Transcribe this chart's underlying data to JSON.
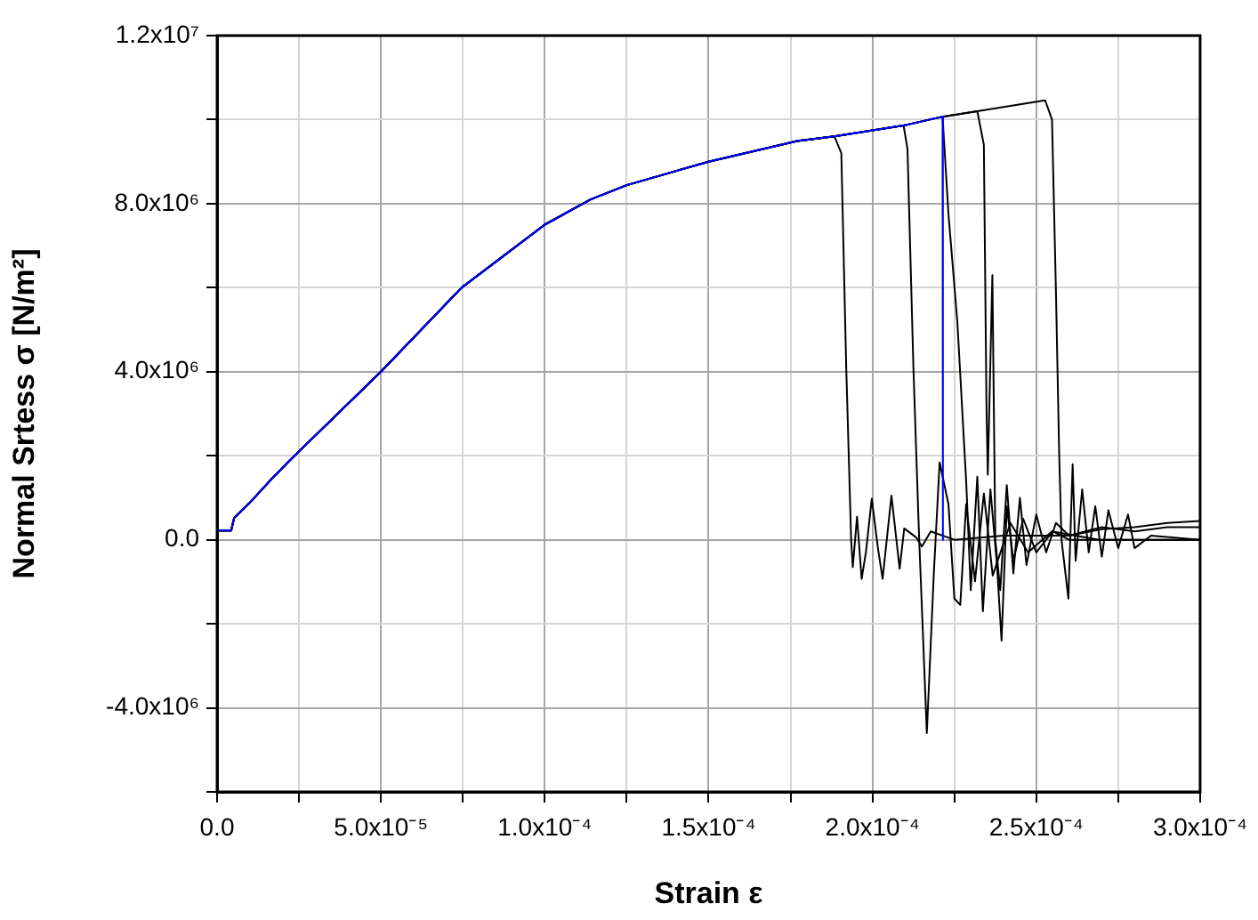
{
  "chart_data": {
    "type": "line",
    "xlabel": "Strain ε",
    "ylabel": "Normal Srtess σ [N/m²]",
    "xlim": [
      0,
      0.0003
    ],
    "ylim": [
      -6000000,
      12000000
    ],
    "xticks": [
      {
        "value": 0,
        "label": "0.0"
      },
      {
        "value": 2.5e-05,
        "label": null
      },
      {
        "value": 5e-05,
        "label": "5.0x10⁻⁵"
      },
      {
        "value": 7.5e-05,
        "label": null
      },
      {
        "value": 0.0001,
        "label": "1.0x10⁻⁴"
      },
      {
        "value": 0.000125,
        "label": null
      },
      {
        "value": 0.00015,
        "label": "1.5x10⁻⁴"
      },
      {
        "value": 0.000175,
        "label": null
      },
      {
        "value": 0.0002,
        "label": "2.0x10⁻⁴"
      },
      {
        "value": 0.000225,
        "label": null
      },
      {
        "value": 0.00025,
        "label": "2.5x10⁻⁴"
      },
      {
        "value": 0.000275,
        "label": null
      },
      {
        "value": 0.0003,
        "label": "3.0x10⁻⁴"
      }
    ],
    "yticks": [
      {
        "value": -6000000,
        "label": null
      },
      {
        "value": -4000000,
        "label": "-4.0x10⁶"
      },
      {
        "value": -2000000,
        "label": null
      },
      {
        "value": 0,
        "label": "0.0"
      },
      {
        "value": 2000000,
        "label": null
      },
      {
        "value": 4000000,
        "label": "4.0x10⁶"
      },
      {
        "value": 6000000,
        "label": null
      },
      {
        "value": 8000000,
        "label": "8.0x10⁶"
      },
      {
        "value": 10000000,
        "label": null
      },
      {
        "value": 12000000,
        "label": "1.2x10⁷"
      }
    ],
    "grid": true,
    "legend": false,
    "marker": "none",
    "line_style": "solid",
    "series": [
      {
        "color": "#000000",
        "x": [
          0,
          4.3e-06,
          5.2e-06,
          9.7e-06,
          1.69e-05,
          2.23e-05,
          5e-05,
          7.46e-05,
          0.0001,
          0.000114,
          0.000125,
          0.00015,
          0.000177,
          0.0001884,
          0.0001905,
          0.000192,
          0.0001935,
          0.000194,
          0.0001953,
          0.0001967,
          0.000198,
          0.0001998,
          0.0002016,
          0.0002031,
          0.0002058,
          0.0002083,
          0.0002097,
          0.0002133,
          0.0002151,
          0.0002178,
          0.000225,
          0.00024,
          0.00026,
          0.00027,
          0.00028,
          0.00029,
          0.0003
        ],
        "values": [
          220000.0,
          220000.0,
          520000.0,
          860000.0,
          1470000.0,
          1900000.0,
          4000000.0,
          6000000.0,
          7500000.0,
          8100000.0,
          8440000.0,
          9000000.0,
          9490000.0,
          9600000.0,
          9200000.0,
          4100000.0,
          0,
          -650000.0,
          550000.0,
          -930000.0,
          -300000.0,
          980000.0,
          -160000.0,
          -930000.0,
          1050000.0,
          -690000.0,
          270000.0,
          60000.0,
          -160000.0,
          200000.0,
          0,
          100000.0,
          100000.0,
          300000.0,
          200000.0,
          300000.0,
          300000.0
        ]
      },
      {
        "color": "#000000",
        "x": [
          0,
          4.3e-06,
          5.2e-06,
          9.7e-06,
          1.69e-05,
          2.23e-05,
          5e-05,
          7.46e-05,
          0.0001,
          0.000114,
          0.000125,
          0.00015,
          0.000177,
          0.0001884,
          0.0002095,
          0.0002107,
          0.0002125,
          0.0002142,
          0.0002166,
          0.0002187,
          0.0002205,
          0.0002232,
          0.000225,
          0.0002268,
          0.0002286,
          0.0002313,
          0.000234,
          0.0002367,
          0.0002421,
          0.0002475,
          0.0002548,
          0.0002692,
          0.0003
        ],
        "values": [
          220000.0,
          220000.0,
          520000.0,
          860000.0,
          1470000.0,
          1900000.0,
          4000000.0,
          6000000.0,
          7500000.0,
          8100000.0,
          8440000.0,
          9000000.0,
          9490000.0,
          9600000.0,
          9860000.0,
          9300000.0,
          4100000.0,
          140000.0,
          -4600000.0,
          -850000.0,
          1840000.0,
          850000.0,
          -1400000.0,
          -1550000.0,
          850000.0,
          -990000.0,
          1100000.0,
          -850000.0,
          400000.0,
          -300000.0,
          200000.0,
          0,
          0
        ]
      },
      {
        "color": "#000000",
        "x": [
          0,
          4.3e-06,
          5.2e-06,
          9.7e-06,
          1.69e-05,
          2.23e-05,
          5e-05,
          7.46e-05,
          0.0001,
          0.000114,
          0.000125,
          0.00015,
          0.000177,
          0.0001884,
          0.0002095,
          0.0002214,
          0.0002232,
          0.0002259,
          0.0002286,
          0.00023,
          0.000232,
          0.0002337,
          0.000236,
          0.000238,
          0.0002394,
          0.000241,
          0.000243,
          0.000246,
          0.00025,
          0.000255,
          0.00026,
          0.0003
        ],
        "values": [
          220000.0,
          220000.0,
          520000.0,
          860000.0,
          1470000.0,
          1900000.0,
          4000000.0,
          6000000.0,
          7500000.0,
          8100000.0,
          8440000.0,
          9000000.0,
          9490000.0,
          9600000.0,
          9860000.0,
          10070000.0,
          7750000.0,
          5200000.0,
          1400000.0,
          -1200000.0,
          1500000.0,
          -1700000.0,
          1200000.0,
          -600000.0,
          -2400000.0,
          800000.0,
          -500000.0,
          500000.0,
          -300000.0,
          200000.0,
          0,
          0
        ]
      },
      {
        "color": "#000000",
        "x": [
          0,
          4.3e-06,
          5.2e-06,
          9.7e-06,
          1.69e-05,
          2.23e-05,
          5e-05,
          7.46e-05,
          0.0001,
          0.000114,
          0.000125,
          0.00015,
          0.000177,
          0.0001884,
          0.0002095,
          0.0002214,
          0.000232,
          0.000234,
          0.0002348,
          0.0002352,
          0.0002366,
          0.0002375,
          0.000239,
          0.000241,
          0.000243,
          0.000245,
          0.000247,
          0.00025,
          0.000253,
          0.000256,
          0.00026,
          0.00027,
          0.00028,
          0.00029,
          0.0003
        ],
        "values": [
          220000.0,
          220000.0,
          520000.0,
          860000.0,
          1470000.0,
          1900000.0,
          4000000.0,
          6000000.0,
          7500000.0,
          8100000.0,
          8440000.0,
          9000000.0,
          9490000.0,
          9600000.0,
          9860000.0,
          10070000.0,
          10200000.0,
          9400000.0,
          3200000.0,
          1550000.0,
          6300000.0,
          0,
          -1200000.0,
          1300000.0,
          -800000.0,
          1000000.0,
          -600000.0,
          600000.0,
          -300000.0,
          400000.0,
          100000.0,
          250000.0,
          300000.0,
          400000.0,
          450000.0
        ]
      },
      {
        "color": "#000000",
        "x": [
          0,
          4.3e-06,
          5.2e-06,
          9.7e-06,
          1.69e-05,
          2.23e-05,
          5e-05,
          7.46e-05,
          0.0001,
          0.000114,
          0.000125,
          0.00015,
          0.000177,
          0.0001884,
          0.0002095,
          0.0002214,
          0.000232,
          0.0002527,
          0.0002548,
          0.000256,
          0.000257,
          0.0002577,
          0.0002598,
          0.0002611,
          0.000262,
          0.000264,
          0.000266,
          0.000268,
          0.00027,
          0.000272,
          0.000275,
          0.000278,
          0.00028,
          0.000285,
          0.0003
        ],
        "values": [
          220000.0,
          220000.0,
          520000.0,
          860000.0,
          1470000.0,
          1900000.0,
          4000000.0,
          6000000.0,
          7500000.0,
          8100000.0,
          8440000.0,
          9000000.0,
          9490000.0,
          9600000.0,
          9860000.0,
          10070000.0,
          10200000.0,
          10460000.0,
          10000000.0,
          5900000.0,
          2000000.0,
          0,
          -1400000.0,
          1800000.0,
          -500000.0,
          1200000.0,
          -300000.0,
          800000.0,
          -400000.0,
          700000.0,
          -200000.0,
          600000.0,
          -200000.0,
          100000.0,
          0
        ]
      },
      {
        "color": "#0000ff",
        "x": [
          0,
          4.3e-06,
          5.2e-06,
          9.7e-06,
          1.69e-05,
          2.23e-05,
          5e-05,
          7.46e-05,
          0.0001,
          0.000114,
          0.000125,
          0.00015,
          0.000177,
          0.0001884,
          0.0002095,
          0.0002214,
          0.0002215
        ],
        "values": [
          220000.0,
          220000.0,
          520000.0,
          860000.0,
          1470000.0,
          1900000.0,
          4000000.0,
          6000000.0,
          7500000.0,
          8100000.0,
          8440000.0,
          9000000.0,
          9490000.0,
          9600000.0,
          9860000.0,
          10070000.0,
          0
        ]
      }
    ]
  }
}
